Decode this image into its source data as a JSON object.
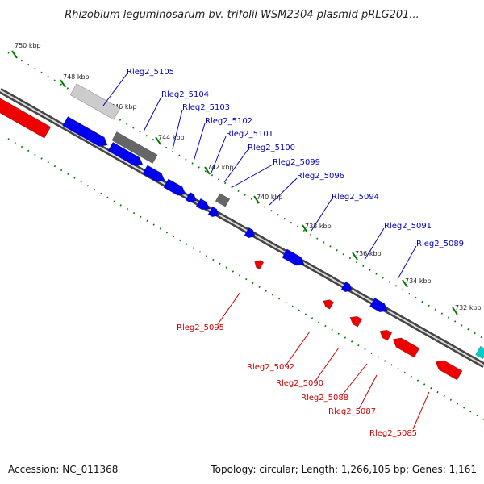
{
  "title": "Rhizobium leguminosarum bv. trifolii WSM2304 plasmid pRLG201...",
  "footer": {
    "accession": "Accession: NC_011368",
    "summary": "Topology: circular; Length: 1,266,105 bp; Genes: 1,161"
  },
  "colors": {
    "forward_gene": "#0000ee",
    "reverse_gene": "#ee0000",
    "label_forward": "#0000bb",
    "label_reverse": "#cc0000",
    "pseudogene_dark": "#666666",
    "pseudogene_light": "#cccccc",
    "backbone": "#888888",
    "tick": "#007700",
    "other": "#00cccc"
  },
  "ticks": [
    "750 kbp",
    "748 kbp",
    "746 kbp",
    "744 kbp",
    "742 kbp",
    "740 kbp",
    "738 kbp",
    "736 kbp",
    "734 kbp",
    "732 kbp"
  ],
  "forward_labels": [
    "Rleg2_5105",
    "Rleg2_5104",
    "Rleg2_5103",
    "Rleg2_5102",
    "Rleg2_5101",
    "Rleg2_5100",
    "Rleg2_5099",
    "Rleg2_5096",
    "Rleg2_5094",
    "Rleg2_5091",
    "Rleg2_5089"
  ],
  "reverse_labels": [
    "Rleg2_5095",
    "Rleg2_5092",
    "Rleg2_5090",
    "Rleg2_5088",
    "Rleg2_5087",
    "Rleg2_5085"
  ]
}
